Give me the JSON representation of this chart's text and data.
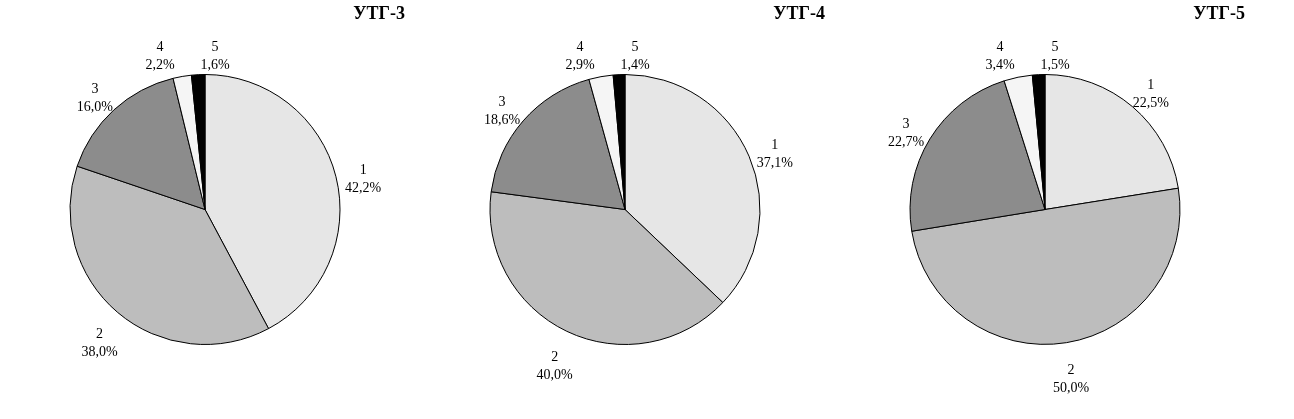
{
  "chart_data": [
    {
      "type": "pie",
      "title": "УТГ-3",
      "categories": [
        "1",
        "2",
        "3",
        "4",
        "5"
      ],
      "values": [
        42.2,
        38.0,
        16.0,
        2.2,
        1.6
      ],
      "value_labels": [
        "42,2%",
        "38,0%",
        "16,0%",
        "2,2%",
        "1,6%"
      ],
      "colors": [
        "#e6e6e6",
        "#bdbdbd",
        "#8c8c8c",
        "#f5f5f5",
        "#000000"
      ]
    },
    {
      "type": "pie",
      "title": "УТГ-4",
      "categories": [
        "1",
        "2",
        "3",
        "4",
        "5"
      ],
      "values": [
        37.1,
        40.0,
        18.6,
        2.9,
        1.4
      ],
      "value_labels": [
        "37,1%",
        "40,0%",
        "18,6%",
        "2,9%",
        "1,4%"
      ],
      "colors": [
        "#e6e6e6",
        "#bdbdbd",
        "#8c8c8c",
        "#f5f5f5",
        "#000000"
      ]
    },
    {
      "type": "pie",
      "title": "УТГ-5",
      "categories": [
        "1",
        "2",
        "3",
        "4",
        "5"
      ],
      "values": [
        22.5,
        50.0,
        22.7,
        3.4,
        1.5
      ],
      "value_labels": [
        "22,5%",
        "50,0%",
        "22,7%",
        "3,4%",
        "1,5%"
      ],
      "colors": [
        "#e6e6e6",
        "#bdbdbd",
        "#8c8c8c",
        "#f5f5f5",
        "#000000"
      ]
    }
  ]
}
